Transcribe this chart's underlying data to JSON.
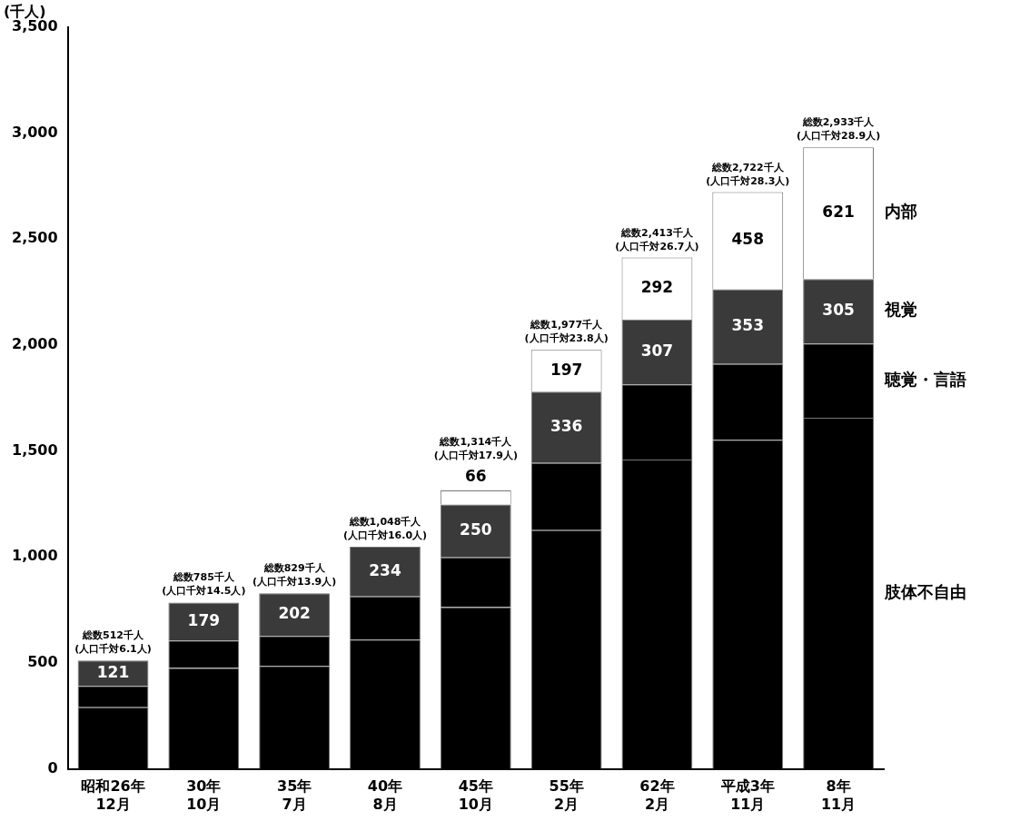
{
  "chart_data": {
    "type": "bar",
    "stacked": true,
    "ylabel": "(千人)",
    "categories": [
      "昭和26年\n12月",
      "30年\n10月",
      "35年\n7月",
      "40年\n8月",
      "45年\n10月",
      "55年\n2月",
      "62年\n2月",
      "平成3年\n11月",
      "8年\n11月"
    ],
    "series": [
      {
        "name": "肢体不自由",
        "color": "#000000",
        "values": [
          291,
          476,
          486,
          610,
          763,
          1127,
          1460,
          1553,
          1657
        ]
      },
      {
        "name": "聴覚・言語",
        "color": "#000000",
        "values": [
          100,
          130,
          141,
          204,
          235,
          317,
          354,
          358,
          350
        ]
      },
      {
        "name": "視覚",
        "color": "#3a3a3a",
        "values": [
          121,
          179,
          202,
          234,
          250,
          336,
          307,
          353,
          305
        ],
        "value_labels": [
          "121",
          "179",
          "202",
          "234",
          "250",
          "336",
          "307",
          "353",
          "305"
        ]
      },
      {
        "name": "内部",
        "color": "#ffffff",
        "values": [
          null,
          null,
          null,
          null,
          66,
          197,
          292,
          458,
          621
        ],
        "value_labels": [
          null,
          null,
          null,
          null,
          "66",
          "197",
          "292",
          "458",
          "621"
        ]
      }
    ],
    "totals": [
      "総数512千人\n(人口千対6.1人)",
      "総数785千人\n(人口千対14.5人)",
      "総数829千人\n(人口千対13.9人)",
      "総数1,048千人\n(人口千対16.0人)",
      "総数1,314千人\n(人口千対17.9人)",
      "総数1,977千人\n(人口千対23.8人)",
      "総数2,413千人\n(人口千対26.7人)",
      "総数2,722千人\n(人口千対28.3人)",
      "総数2,933千人\n(人口千対28.9人)"
    ],
    "ylim": [
      0,
      3500
    ],
    "yticks": [
      0,
      500,
      {
        "value": 1000,
        "label": "1,000"
      },
      {
        "value": 1500,
        "label": "1,500"
      },
      {
        "value": 2000,
        "label": "2,000"
      },
      {
        "value": 2500,
        "label": "2,500"
      },
      {
        "value": 3000,
        "label": "3,000"
      },
      {
        "value": 3500,
        "label": "3,500"
      }
    ],
    "legend": "right"
  }
}
